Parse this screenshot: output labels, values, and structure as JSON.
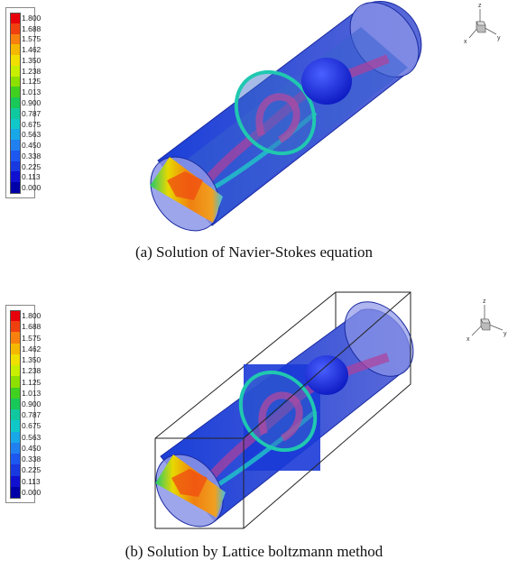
{
  "legend": {
    "values": [
      "1.800",
      "1.688",
      "1.575",
      "1.462",
      "1.350",
      "1.238",
      "1.125",
      "1.013",
      "0.900",
      "0.787",
      "0.675",
      "0.563",
      "0.450",
      "0.338",
      "0.225",
      "0.113",
      "0.000"
    ],
    "colors": [
      "#e8000a",
      "#f04010",
      "#f7800e",
      "#f5b800",
      "#f0e000",
      "#c8ef00",
      "#8ee000",
      "#40d020",
      "#18c858",
      "#10c8a0",
      "#10c8c8",
      "#18a8e8",
      "#2080f0",
      "#1c58f0",
      "#1838e0",
      "#1010d0",
      "#0000a8"
    ]
  },
  "panels": [
    {
      "caption": "(a) Solution of Navier-Stokes equation",
      "axes": {
        "z": "z",
        "x": "x",
        "y": "y"
      }
    },
    {
      "caption": "(b) Solution by Lattice boltzmann method",
      "axes": {
        "z": "z",
        "x": "x",
        "y": "y"
      }
    }
  ]
}
